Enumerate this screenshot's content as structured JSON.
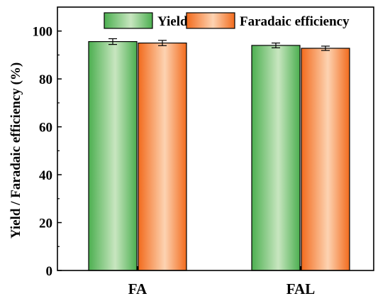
{
  "chart_data": {
    "type": "bar",
    "categories": [
      "FA",
      "FAL"
    ],
    "series": [
      {
        "name": "Yield",
        "values": [
          95.6,
          94.0
        ],
        "errors": [
          1.2,
          1.0
        ],
        "color": "#4caf50",
        "color_light": "#c8e6c0"
      },
      {
        "name": "Faradaic efficiency",
        "values": [
          95.0,
          92.8
        ],
        "errors": [
          1.1,
          0.9
        ],
        "color": "#f26b1d",
        "color_light": "#fdd3b2"
      }
    ],
    "ylabel": "Yield / Faradaic efficiency (%)",
    "xlabel": "",
    "ylim": [
      0,
      110
    ],
    "yticks": [
      0,
      20,
      40,
      60,
      80,
      100
    ],
    "legend_position": "top",
    "grid": false
  }
}
